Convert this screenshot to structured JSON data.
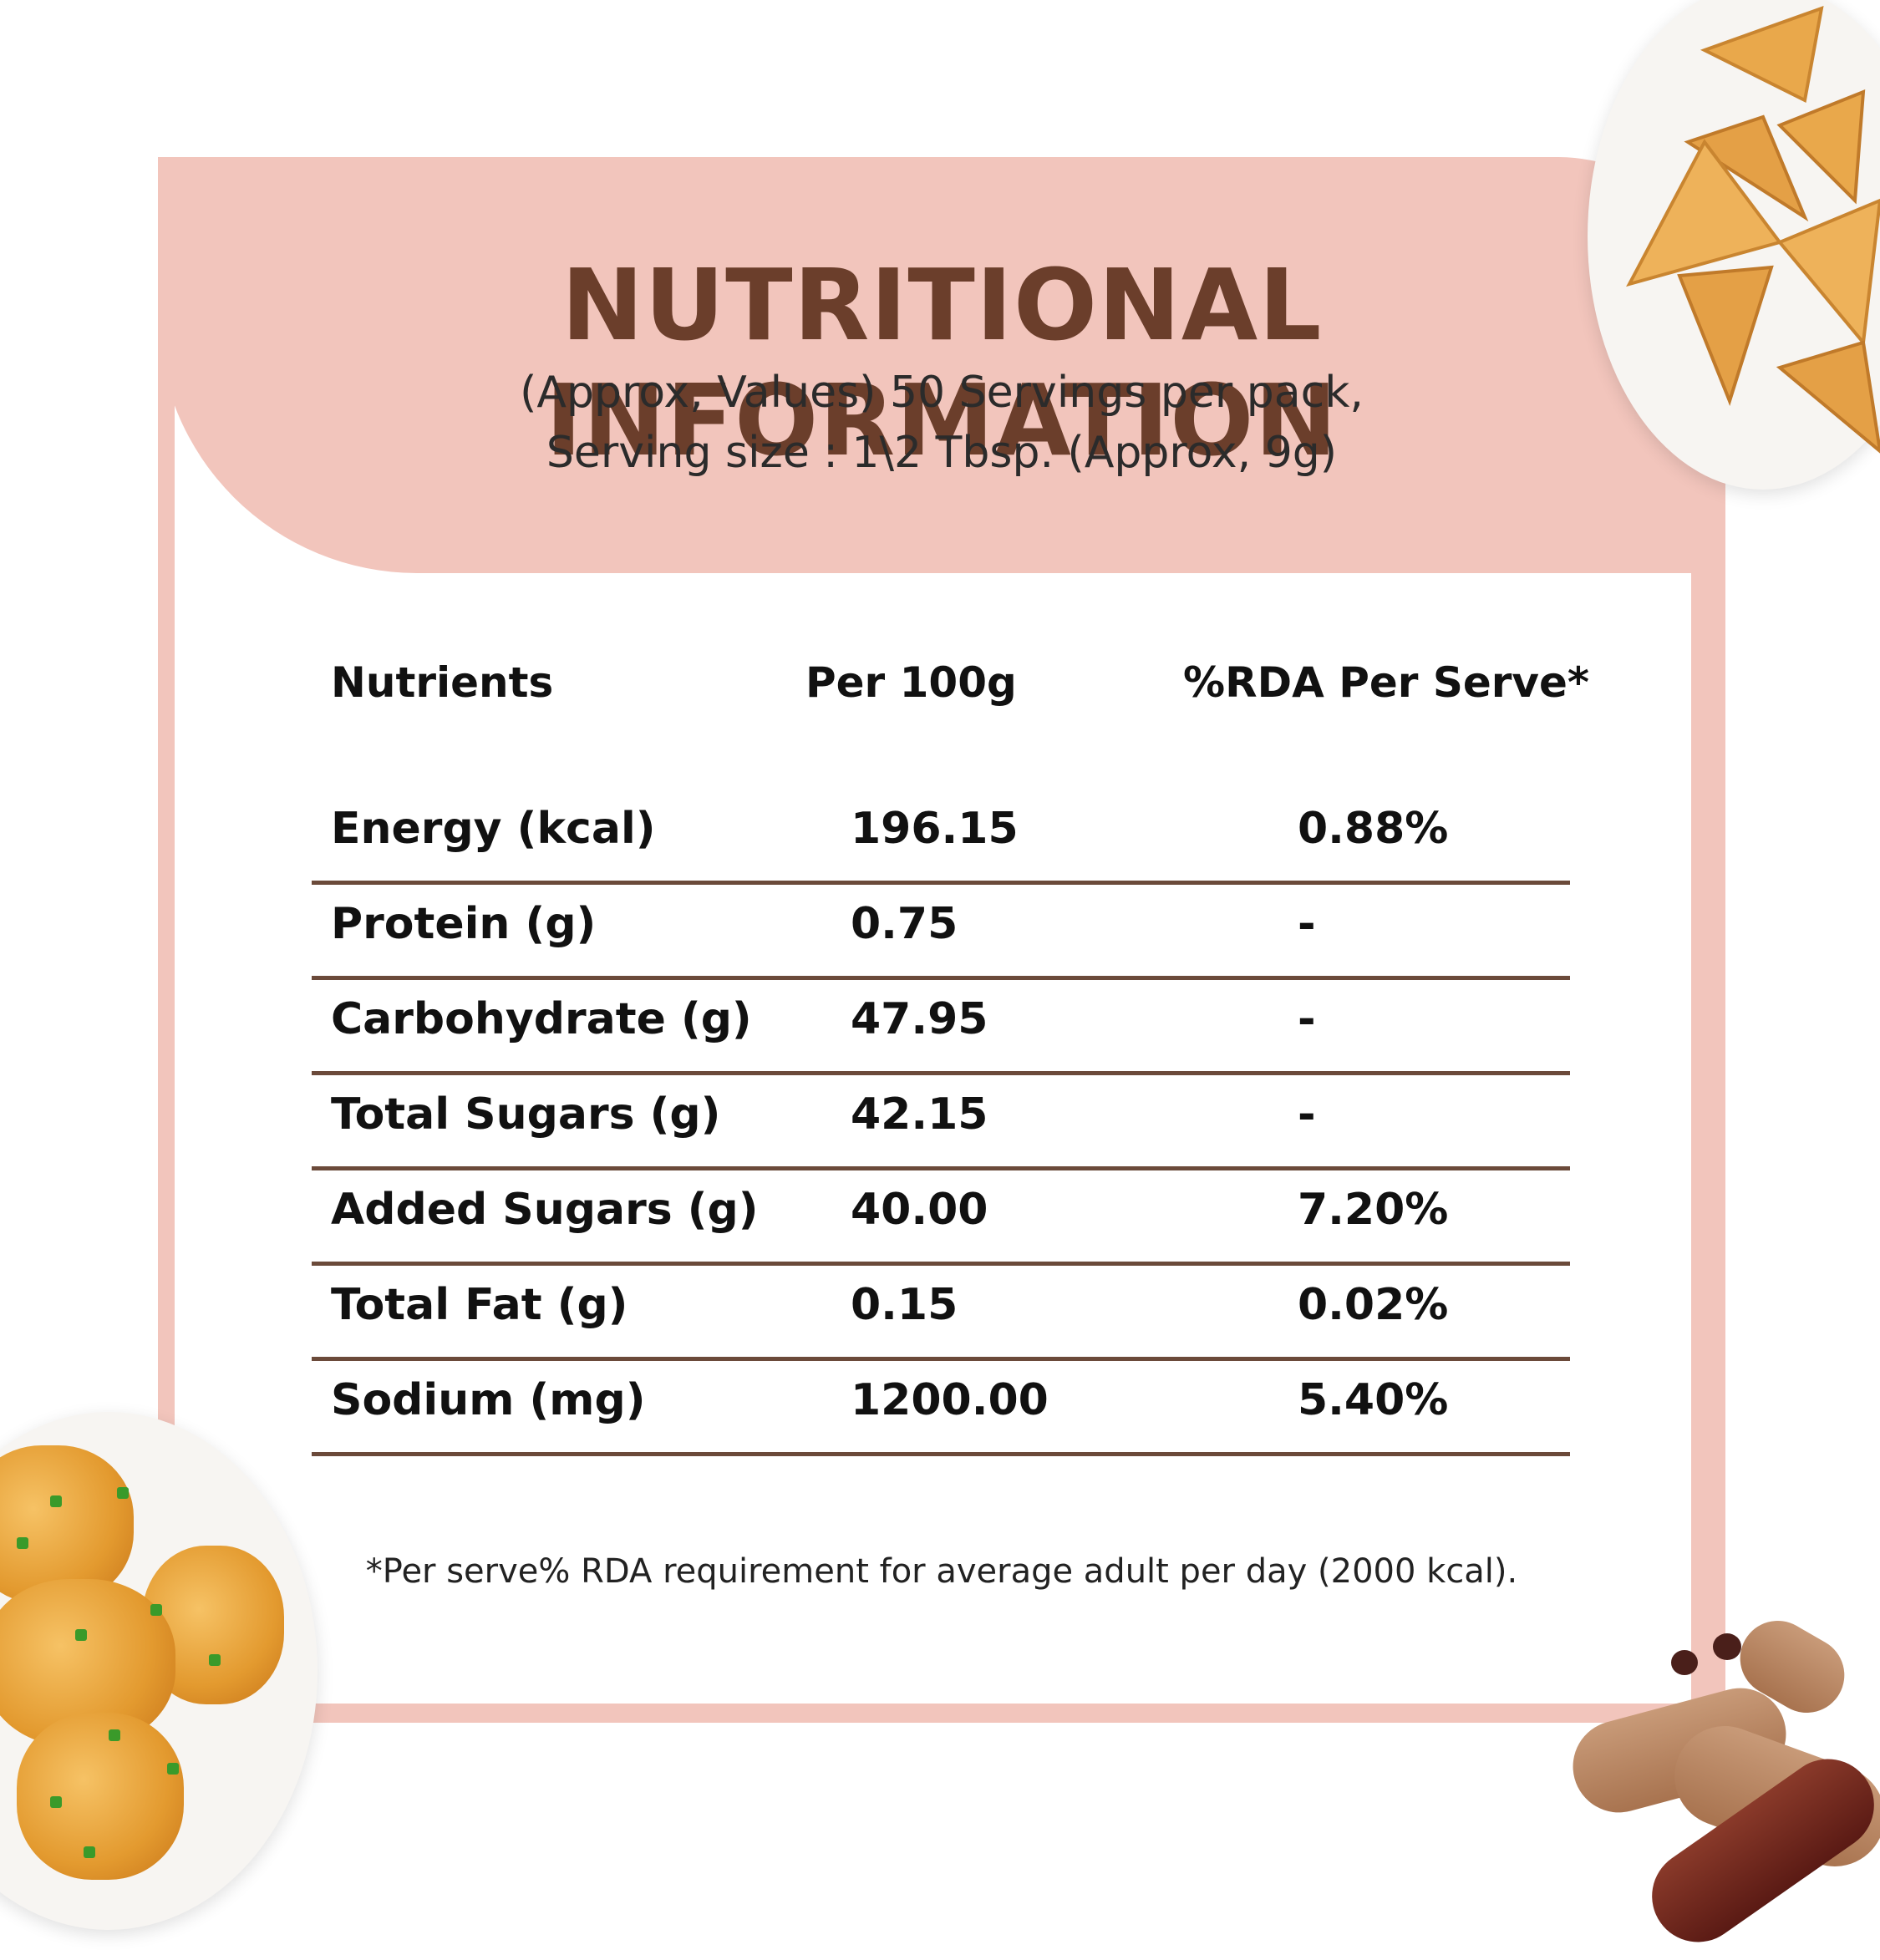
{
  "header": {
    "title": "NUTRITIONAL INFORMATION",
    "subtitle_line1": "(Approx, Values) 50 Servings per pack,",
    "subtitle_line2": "Serving size : 1\\2 Tbsp. (Approx, 9g)"
  },
  "table": {
    "headers": [
      "Nutrients",
      "Per 100g",
      "%RDA Per Serve*"
    ],
    "rows": [
      {
        "nutrient": "Energy (kcal)",
        "per100g": "196.15",
        "rda": "0.88%"
      },
      {
        "nutrient": "Protein (g)",
        "per100g": "0.75",
        "rda": "-"
      },
      {
        "nutrient": "Carbohydrate (g)",
        "per100g": "47.95",
        "rda": "-"
      },
      {
        "nutrient": "Total Sugars (g)",
        "per100g": "42.15",
        "rda": "-"
      },
      {
        "nutrient": "Added Sugars (g)",
        "per100g": "40.00",
        "rda": "7.20%"
      },
      {
        "nutrient": "Total Fat (g)",
        "per100g": "0.15",
        "rda": "0.02%"
      },
      {
        "nutrient": "Sodium (mg)",
        "per100g": "1200.00",
        "rda": "5.40%"
      }
    ]
  },
  "footnote": "*Per serve% RDA requirement for average adult per day (2000 kcal).",
  "colors": {
    "accent_pink": "#f2c5bc",
    "title_brown": "#6b3e2b",
    "rule_brown": "#6b4a3a"
  },
  "images": [
    "samosa-plate",
    "hash-brown-plate",
    "tamarind-pods"
  ]
}
